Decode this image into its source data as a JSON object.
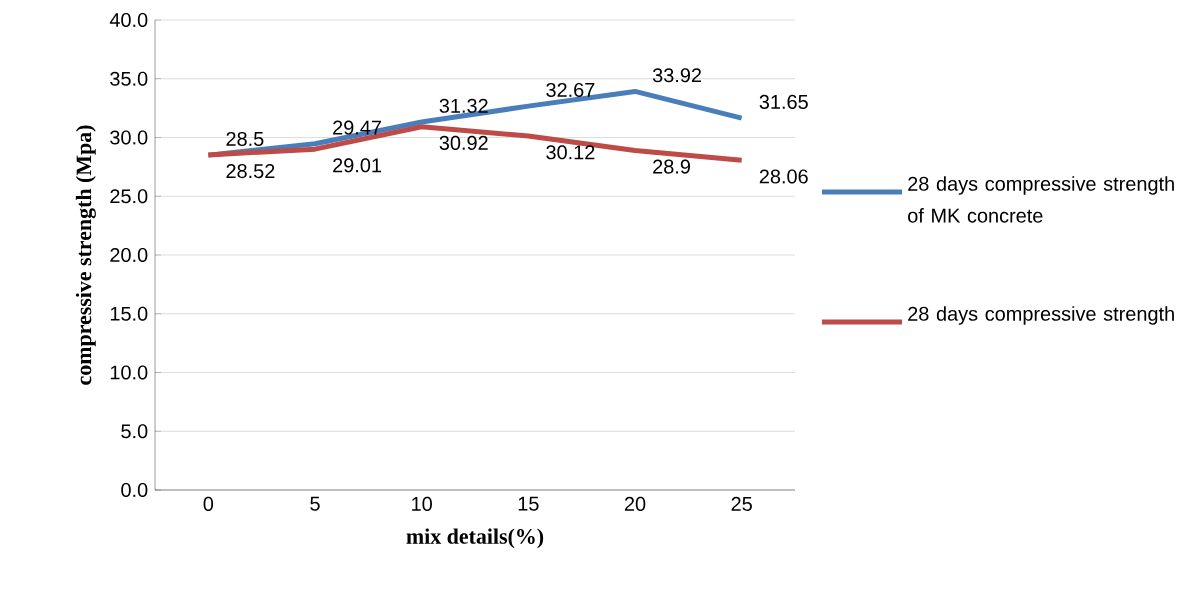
{
  "chart_data": {
    "type": "line",
    "xlabel": "mix details(%)",
    "ylabel": "compressive strength  (Mpa)",
    "categories": [
      "0",
      "5",
      "10",
      "15",
      "20",
      "25"
    ],
    "series": [
      {
        "name": "28 days compressive strength of MK concrete",
        "color": "#4a7ebb",
        "values": [
          28.5,
          29.47,
          31.32,
          32.67,
          33.92,
          31.65
        ]
      },
      {
        "name": "28 days compressive strength",
        "color": "#be4b48",
        "values": [
          28.52,
          29.01,
          30.92,
          30.12,
          28.9,
          28.06
        ]
      }
    ],
    "ylim": [
      0,
      40
    ],
    "yticks": [
      {
        "value": 0,
        "label": "0.0"
      },
      {
        "value": 5,
        "label": "5.0"
      },
      {
        "value": 10,
        "label": "10.0"
      },
      {
        "value": 15,
        "label": "15.0"
      },
      {
        "value": 20,
        "label": "20.0"
      },
      {
        "value": 25,
        "label": "25.0"
      },
      {
        "value": 30,
        "label": "30.0"
      },
      {
        "value": 35,
        "label": "35.0"
      },
      {
        "value": 40,
        "label": "40.0"
      }
    ],
    "grid": "y",
    "legend": "right",
    "marker": "none",
    "line_style": "solid",
    "data_labels": true
  }
}
